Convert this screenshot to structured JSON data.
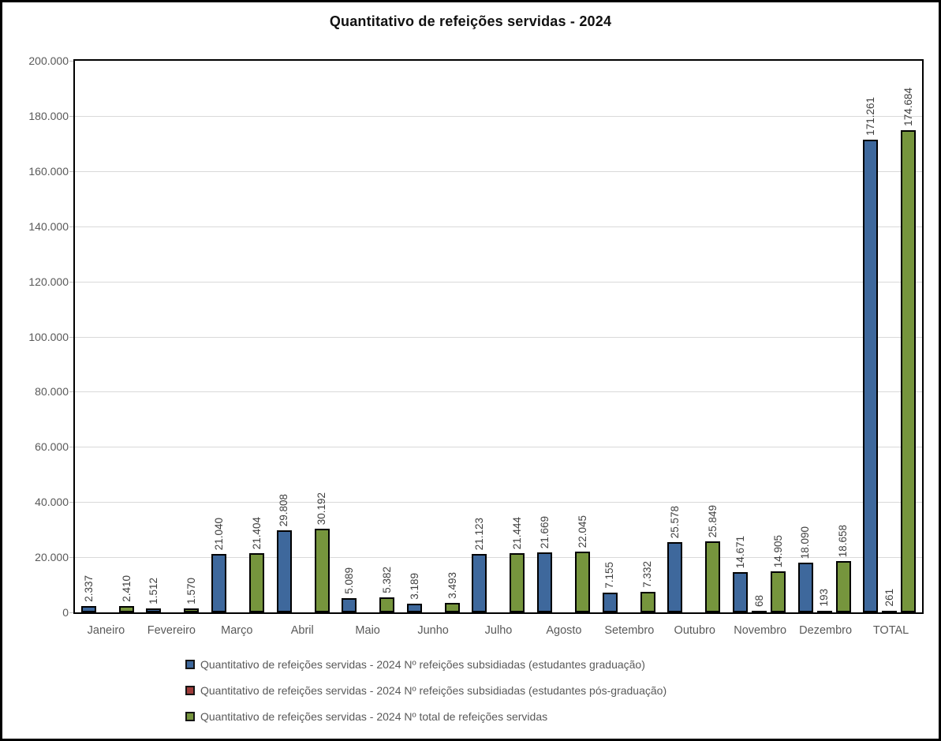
{
  "title": "Quantitativo de refeições servidas - 2024",
  "colors": {
    "graduacao": "#3E689C",
    "pos_graduacao": "#9E3B39",
    "total": "#76953D",
    "grid": "#D9D9D9",
    "axis_text": "#595959",
    "label_text": "#404040",
    "bar_border": "#000000",
    "frame": "#000000",
    "background": "#FFFFFF"
  },
  "y_axis": {
    "ticks": [
      "200.000",
      "180.000",
      "160.000",
      "140.000",
      "120.000",
      "100.000",
      "80.000",
      "60.000",
      "40.000",
      "20.000",
      "0"
    ],
    "max": 200000,
    "step": 20000
  },
  "chart_data": {
    "type": "bar",
    "title": "Quantitativo de refeições servidas - 2024",
    "categories": [
      "Janeiro",
      "Fevereiro",
      "Março",
      "Abril",
      "Maio",
      "Junho",
      "Julho",
      "Agosto",
      "Setembro",
      "Outubro",
      "Novembro",
      "Dezembro",
      "TOTAL"
    ],
    "series": [
      {
        "name": "Quantitativo de refeições servidas - 2024 Nº refeições subsidiadas (estudantes graduação)",
        "color": "#3E689C",
        "values": [
          2337,
          1512,
          21040,
          29808,
          5089,
          3189,
          21123,
          21669,
          7155,
          25578,
          14671,
          18090,
          171261
        ],
        "labels": [
          "2.337",
          "1.512",
          "21.040",
          "29.808",
          "5.089",
          "3.189",
          "21.123",
          "21.669",
          "7.155",
          "25.578",
          "14.671",
          "18.090",
          "171.261"
        ]
      },
      {
        "name": "Quantitativo de refeições servidas - 2024 Nº refeições subsidiadas (estudantes pós-graduação)",
        "color": "#9E3B39",
        "values": [
          0,
          0,
          0,
          0,
          0,
          0,
          0,
          0,
          0,
          0,
          68,
          193,
          261
        ],
        "labels": [
          "",
          "",
          "",
          "",
          "",
          "",
          "",
          "",
          "",
          "",
          "68",
          "193",
          "261"
        ]
      },
      {
        "name": "Quantitativo de refeições servidas - 2024 Nº total de refeições servidas",
        "color": "#76953D",
        "values": [
          2410,
          1570,
          21404,
          30192,
          5382,
          3493,
          21444,
          22045,
          7332,
          25849,
          14905,
          18658,
          174684
        ],
        "labels": [
          "2.410",
          "1.570",
          "21.404",
          "30.192",
          "5.382",
          "3.493",
          "21.444",
          "22.045",
          "7.332",
          "25.849",
          "14.905",
          "18.658",
          "174.684"
        ]
      }
    ],
    "ylim": [
      0,
      200000
    ],
    "grid": true,
    "legend_position": "bottom",
    "xlabel": "",
    "ylabel": ""
  }
}
